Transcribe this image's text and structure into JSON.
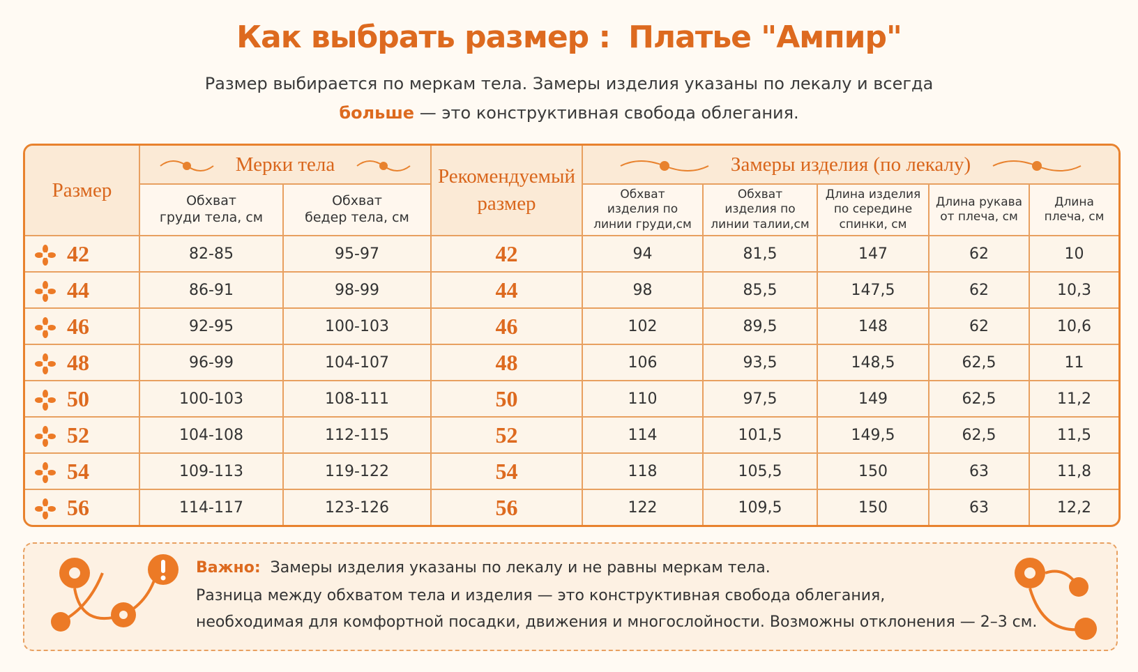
{
  "header": {
    "title": "Как выбрать размер :",
    "product": "Платье \"Ампир\"",
    "subtitle_line_1": "Размер выбирается по меркам тела. Замеры изделия указаны по лекалу и всегда",
    "subtitle_emphasis": "больше",
    "subtitle_line_2": "— это конструктивная свобода облегания."
  },
  "table": {
    "groups": [
      "Размер",
      "Мерки тела",
      "Рекомендуемый размер",
      "Замеры изделия (по лекалу)"
    ],
    "columns": [
      "Обхват\nгруди тела, см",
      "Обхват\nбедер тела, см",
      "Обхват\nизделия по\nлинии груди,см",
      "Обхват\nизделия по\nлинии талии,см",
      "Длина изделия\nпо середине\nспинки, см",
      "Длина рукава\nот плеча, см",
      "Длина\nплеча, см"
    ],
    "rows": [
      [
        "42",
        "82-85",
        "95-97",
        "42",
        "94",
        "81,5",
        "147",
        "62",
        "10"
      ],
      [
        "44",
        "86-91",
        "98-99",
        "44",
        "98",
        "85,5",
        "147,5",
        "62",
        "10,3"
      ],
      [
        "46",
        "92-95",
        "100-103",
        "46",
        "102",
        "89,5",
        "148",
        "62",
        "10,6"
      ],
      [
        "48",
        "96-99",
        "104-107",
        "48",
        "106",
        "93,5",
        "148,5",
        "62,5",
        "11"
      ],
      [
        "50",
        "100-103",
        "108-111",
        "50",
        "110",
        "97,5",
        "149",
        "62,5",
        "11,2"
      ],
      [
        "52",
        "104-108",
        "112-115",
        "52",
        "114",
        "101,5",
        "149,5",
        "62,5",
        "11,5"
      ],
      [
        "54",
        "109-113",
        "119-122",
        "54",
        "118",
        "105,5",
        "150",
        "63",
        "11,8"
      ],
      [
        "56",
        "114-117",
        "123-126",
        "56",
        "122",
        "109,5",
        "150",
        "63",
        "12,2"
      ]
    ]
  },
  "note": {
    "label": "Важно:",
    "lines": [
      "Замеры изделия указаны по лекалу и не равны меркам тела.",
      "Разница между обхватом тела и изделия — это конструктивная свобода облегания,",
      "необходимая для комфортной посадки, движения и многослойности. Возможны отклонения — 2–3 см."
    ]
  }
}
